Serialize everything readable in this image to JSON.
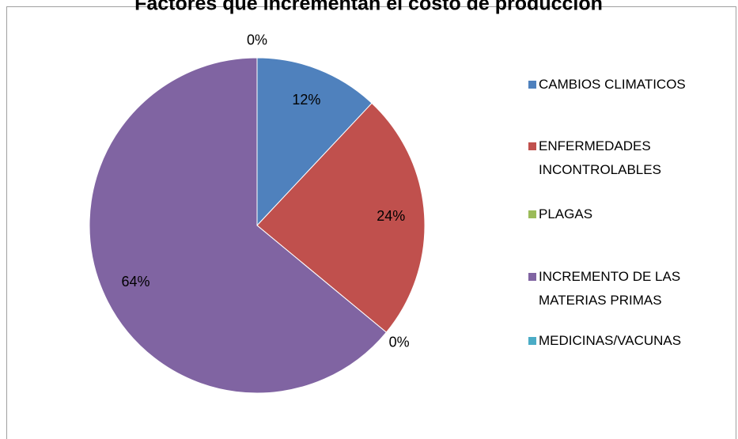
{
  "chart_data": {
    "type": "pie",
    "title": "Factores que incrementan el costo de producción",
    "categories": [
      "CAMBIOS CLIMATICOS",
      "ENFERMEDADES INCONTROLABLES",
      "PLAGAS",
      "INCREMENTO DE LAS MATERIAS PRIMAS",
      "MEDICINAS/VACUNAS"
    ],
    "values": [
      12,
      24,
      0,
      64,
      0
    ],
    "value_labels": [
      "12%",
      "24%",
      "0%",
      "64%",
      "0%"
    ],
    "colors": [
      "#4f81bd",
      "#c0504d",
      "#9bbb59",
      "#8064a2",
      "#4bacc6"
    ],
    "legend": "right"
  }
}
